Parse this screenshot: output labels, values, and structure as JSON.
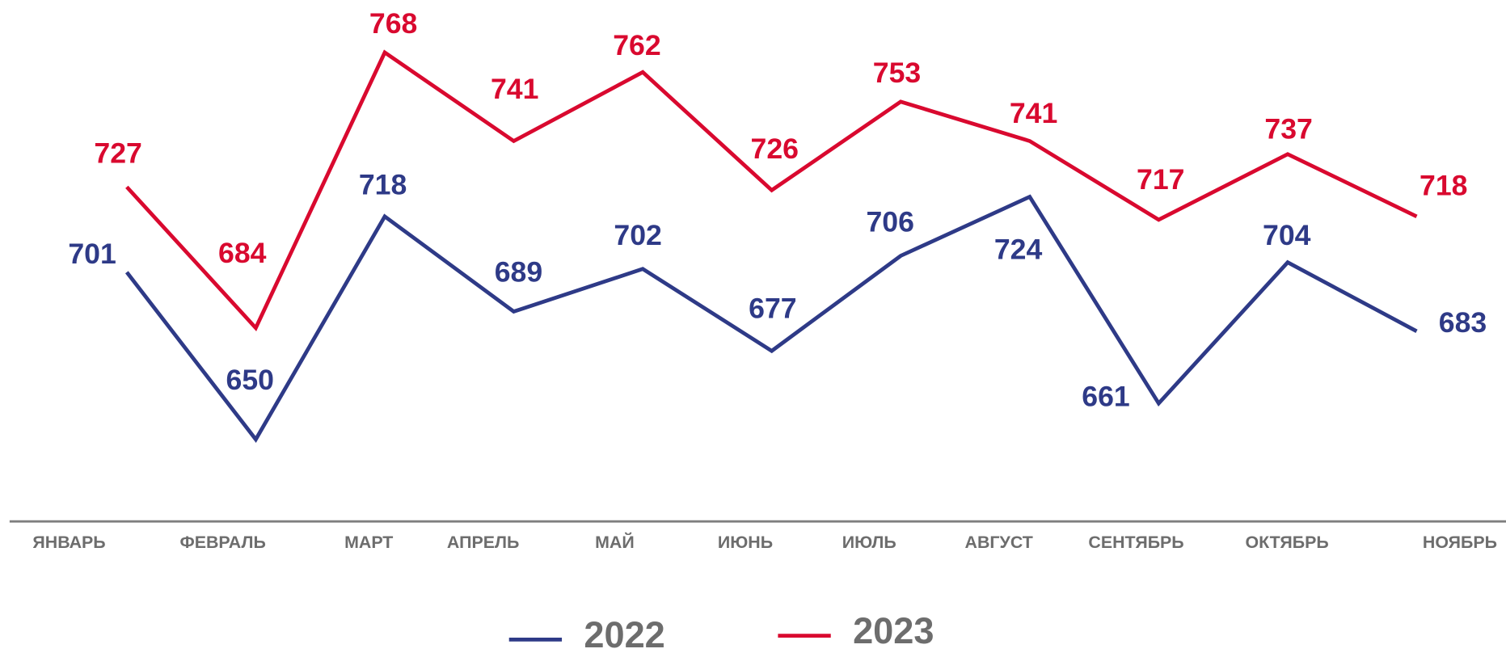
{
  "chart_data": {
    "type": "line",
    "categories": [
      "ЯНВАРЬ",
      "ФЕВРАЛЬ",
      "МАРТ",
      "АПРЕЛЬ",
      "МАЙ",
      "ИЮНЬ",
      "ИЮЛЬ",
      "АВГУСТ",
      "СЕНТЯБРЬ",
      "ОКТЯБРЬ",
      "НОЯБРЬ"
    ],
    "series": [
      {
        "name": "2022",
        "color": "#2e3a87",
        "values": [
          701,
          650,
          718,
          689,
          702,
          677,
          706,
          724,
          661,
          704,
          683
        ]
      },
      {
        "name": "2023",
        "color": "#d9092f",
        "values": [
          727,
          684,
          768,
          741,
          762,
          726,
          753,
          741,
          717,
          737,
          718
        ]
      }
    ],
    "ylim": [
      625,
      784
    ]
  }
}
